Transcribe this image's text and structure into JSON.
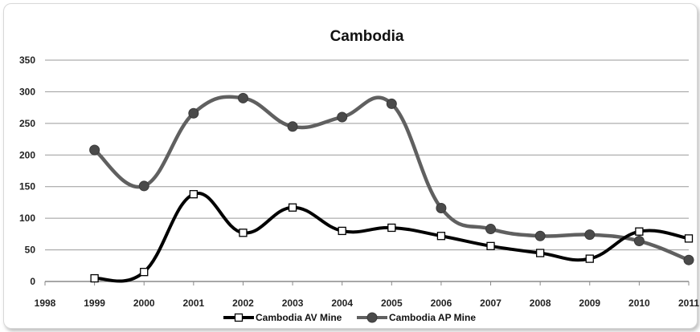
{
  "chart_data": {
    "type": "line",
    "title": "Cambodia",
    "xlabel": "",
    "ylabel": "",
    "x_ticks": [
      "1998",
      "1999",
      "2000",
      "2001",
      "2002",
      "2003",
      "2004",
      "2005",
      "2006",
      "2007",
      "2008",
      "2009",
      "2010",
      "2011"
    ],
    "y_ticks": [
      "0",
      "50",
      "100",
      "150",
      "200",
      "250",
      "300",
      "350"
    ],
    "xlim": [
      1998,
      2011
    ],
    "ylim": [
      0,
      350
    ],
    "grid": "horizontal",
    "legend_position": "bottom",
    "x": [
      1999,
      2000,
      2001,
      2002,
      2003,
      2004,
      2005,
      2006,
      2007,
      2008,
      2009,
      2010,
      2011
    ],
    "series": [
      {
        "name": "Cambodia AV Mine",
        "color": "#000000",
        "marker": "square-open",
        "values": [
          5,
          15,
          138,
          77,
          117,
          80,
          85,
          72,
          56,
          45,
          36,
          79,
          68
        ]
      },
      {
        "name": "Cambodia AP Mine",
        "color": "#606060",
        "marker": "circle-filled",
        "values": [
          208,
          151,
          266,
          290,
          245,
          260,
          281,
          116,
          83,
          72,
          74,
          64,
          34
        ]
      }
    ]
  }
}
